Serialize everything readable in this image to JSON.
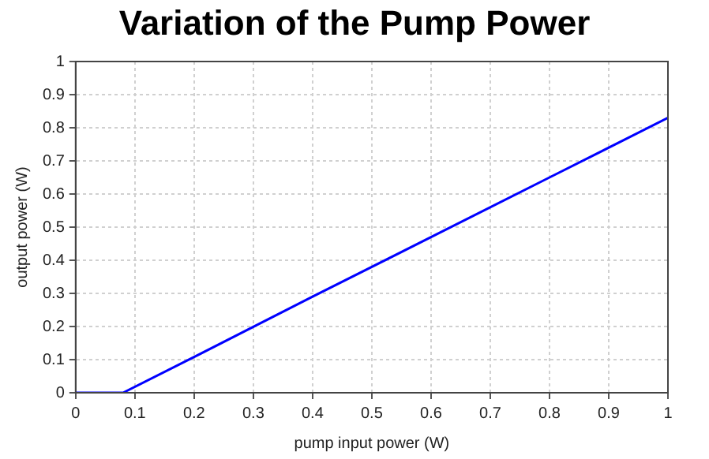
{
  "chart_data": {
    "type": "line",
    "title": "Variation of the Pump Power",
    "xlabel": "pump input power (W)",
    "ylabel": "output power (W)",
    "x": [
      0,
      0.08,
      0.2,
      0.4,
      0.6,
      0.8,
      1
    ],
    "series": [
      {
        "color": "#0000ff",
        "values": [
          0,
          0,
          0.108,
          0.29,
          0.47,
          0.65,
          0.83
        ]
      }
    ],
    "xlim": [
      0,
      1
    ],
    "ylim": [
      0,
      1
    ],
    "xticks": [
      0,
      0.1,
      0.2,
      0.3,
      0.4,
      0.5,
      0.6,
      0.7,
      0.8,
      0.9,
      1
    ],
    "yticks": [
      0,
      0.1,
      0.2,
      0.3,
      0.4,
      0.5,
      0.6,
      0.7,
      0.8,
      0.9,
      1
    ],
    "grid": true,
    "marker": "none",
    "line_style": "solid",
    "legend": false
  }
}
